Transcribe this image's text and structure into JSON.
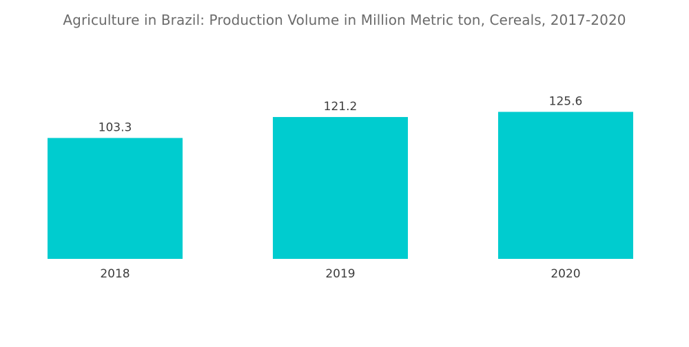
{
  "chart_data": {
    "type": "bar",
    "title": "Agriculture in Brazil: Production Volume in Million Metric ton, Cereals, 2017-2020",
    "categories": [
      "2018",
      "2019",
      "2020"
    ],
    "values": [
      103.3,
      121.2,
      125.6
    ],
    "value_labels": [
      "103.3",
      "121.2",
      "125.6"
    ],
    "bar_color": "#00cccf",
    "grid": false,
    "legend": "none"
  }
}
